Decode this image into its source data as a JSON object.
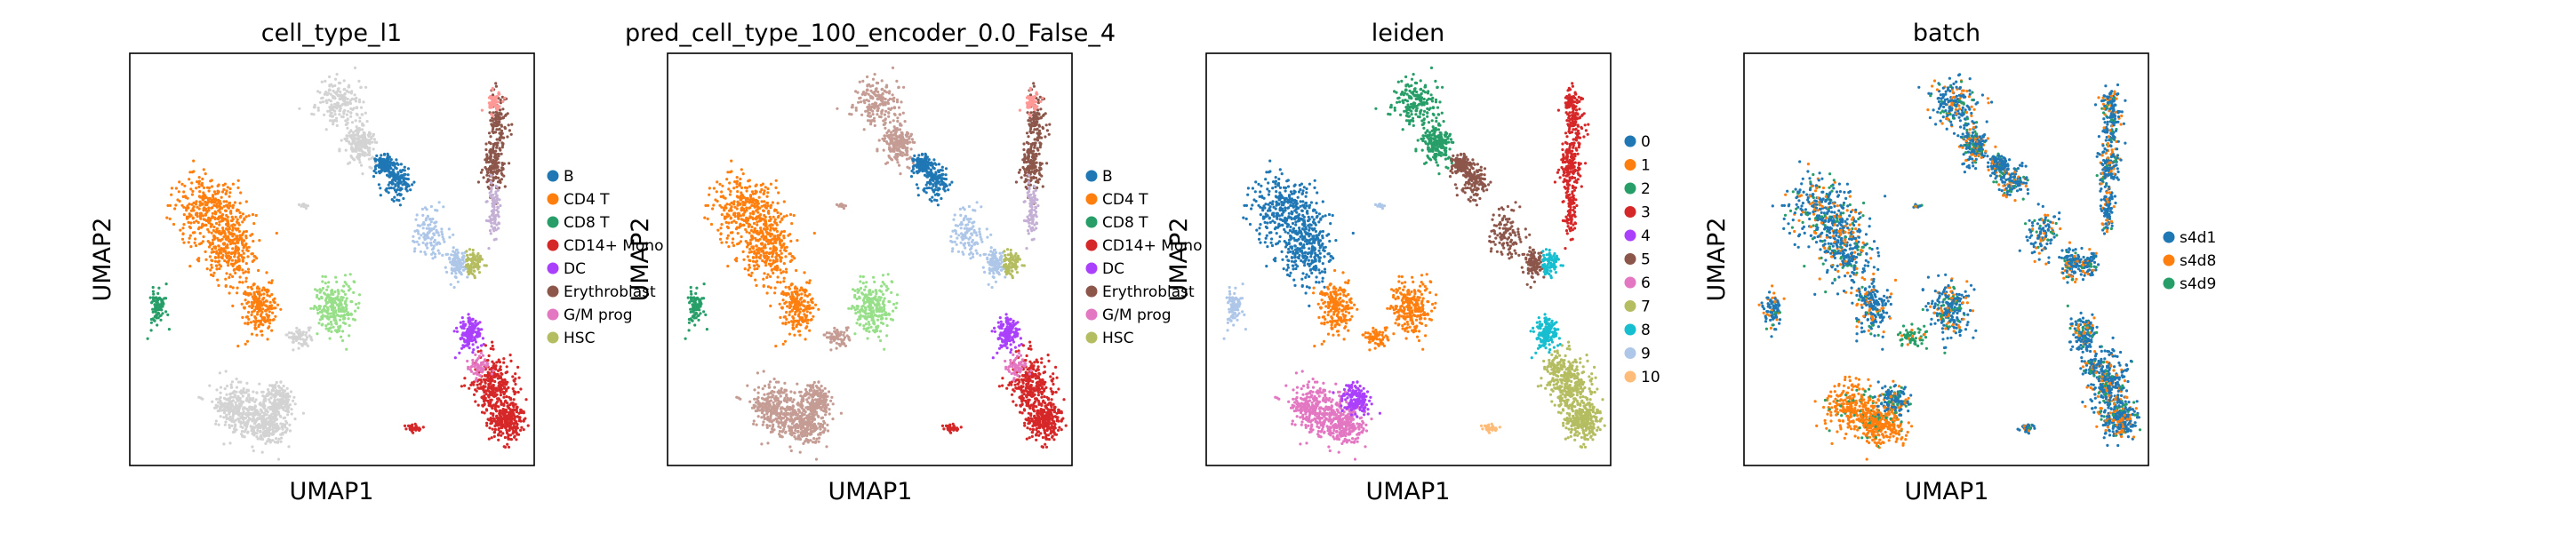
{
  "colors": {
    "tab_blue": "#1f77b4",
    "tab_orange": "#ff7f0e",
    "tab_green": "#279e68",
    "tab_red": "#d62728",
    "tab_purple": "#aa40fc",
    "tab_brown": "#8c564b",
    "tab_pink": "#e377c2",
    "tab_olive": "#b5bd61",
    "tab_cyan": "#17becf",
    "tab_lightblue": "#aec7e8",
    "tab_peach": "#ffbb78",
    "lightgray": "#d3d3d3",
    "lightgreen": "#98df8a",
    "salmon": "#ff9896",
    "lavender": "#c5b0d5",
    "rosybrown": "#c49c94",
    "lightpink": "#f7b6d2"
  },
  "chart_data": [
    {
      "type": "scatter",
      "title": "cell_type_l1",
      "xlabel": "UMAP1",
      "ylabel": "UMAP2",
      "grid": false,
      "legend_position": "right",
      "legend": [
        {
          "label": "B",
          "color": "#1f77b4"
        },
        {
          "label": "CD4 T",
          "color": "#ff7f0e"
        },
        {
          "label": "CD8 T",
          "color": "#279e68"
        },
        {
          "label": "CD14+ Mono",
          "color": "#d62728"
        },
        {
          "label": "DC",
          "color": "#aa40fc"
        },
        {
          "label": "Erythroblast",
          "color": "#8c564b"
        },
        {
          "label": "G/M prog",
          "color": "#e377c2"
        },
        {
          "label": "HSC",
          "color": "#b5bd61"
        }
      ]
    },
    {
      "type": "scatter",
      "title": "pred_cell_type_100_encoder_0.0_False_4",
      "xlabel": "UMAP1",
      "ylabel": "UMAP2",
      "grid": false,
      "legend_position": "right",
      "legend": [
        {
          "label": "B",
          "color": "#1f77b4"
        },
        {
          "label": "CD4 T",
          "color": "#ff7f0e"
        },
        {
          "label": "CD8 T",
          "color": "#279e68"
        },
        {
          "label": "CD14+ Mono",
          "color": "#d62728"
        },
        {
          "label": "DC",
          "color": "#aa40fc"
        },
        {
          "label": "Erythroblast",
          "color": "#8c564b"
        },
        {
          "label": "G/M prog",
          "color": "#e377c2"
        },
        {
          "label": "HSC",
          "color": "#b5bd61"
        }
      ]
    },
    {
      "type": "scatter",
      "title": "leiden",
      "xlabel": "UMAP1",
      "ylabel": "UMAP2",
      "grid": false,
      "legend_position": "right",
      "legend": [
        {
          "label": "0",
          "color": "#1f77b4"
        },
        {
          "label": "1",
          "color": "#ff7f0e"
        },
        {
          "label": "2",
          "color": "#279e68"
        },
        {
          "label": "3",
          "color": "#d62728"
        },
        {
          "label": "4",
          "color": "#aa40fc"
        },
        {
          "label": "5",
          "color": "#8c564b"
        },
        {
          "label": "6",
          "color": "#e377c2"
        },
        {
          "label": "7",
          "color": "#b5bd61"
        },
        {
          "label": "8",
          "color": "#17becf"
        },
        {
          "label": "9",
          "color": "#aec7e8"
        },
        {
          "label": "10",
          "color": "#ffbb78"
        }
      ]
    },
    {
      "type": "scatter",
      "title": "batch",
      "xlabel": "UMAP1",
      "ylabel": "UMAP2",
      "grid": false,
      "legend_position": "right",
      "legend": [
        {
          "label": "s4d1",
          "color": "#1f77b4"
        },
        {
          "label": "s4d8",
          "color": "#ff7f0e"
        },
        {
          "label": "s4d9",
          "color": "#279e68"
        }
      ]
    }
  ]
}
